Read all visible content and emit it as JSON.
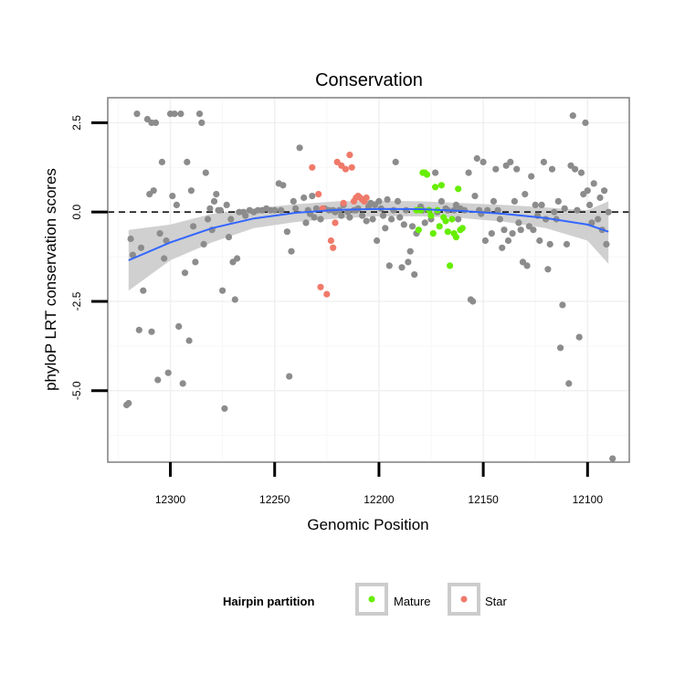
{
  "chart_data": {
    "type": "scatter",
    "title": "Conservation",
    "xlabel": "Genomic Position",
    "ylabel": "phyloP LRT conservation scores",
    "x_reversed": true,
    "xlim": [
      12330,
      12080
    ],
    "ylim": [
      -7.0,
      3.2
    ],
    "x_ticks": [
      12300,
      12250,
      12200,
      12150,
      12100
    ],
    "x_tick_labels": [
      "12300",
      "12250",
      "12200",
      "12150",
      "12100"
    ],
    "y_ticks": [
      2.5,
      0.0,
      -2.5,
      -5.0
    ],
    "y_tick_labels": [
      "2.5",
      "0.0",
      "-2.5",
      "-5.0"
    ],
    "reference_line": {
      "y": 0.0,
      "style": "dashed"
    },
    "grid": true,
    "legend": {
      "title": "Hairpin partition",
      "position": "bottom",
      "entries": [
        {
          "label": "Mature",
          "color": "#66ee00"
        },
        {
          "label": "Star",
          "color": "#f07a6a"
        }
      ]
    },
    "colors": {
      "other": "#8c8c8c",
      "mature": "#66ee00",
      "star": "#f07a6a",
      "smooth": "#3366ff",
      "band": "#c8c8c8"
    },
    "smooth": {
      "x": [
        12320,
        12300,
        12280,
        12260,
        12240,
        12220,
        12200,
        12180,
        12160,
        12140,
        12120,
        12100,
        12090
      ],
      "y": [
        -1.35,
        -0.85,
        -0.45,
        -0.18,
        -0.02,
        0.06,
        0.09,
        0.08,
        0.03,
        -0.05,
        -0.17,
        -0.35,
        -0.55
      ],
      "band_low": [
        -2.2,
        -1.35,
        -0.85,
        -0.45,
        -0.28,
        -0.18,
        -0.12,
        -0.12,
        -0.17,
        -0.27,
        -0.45,
        -0.8,
        -1.45
      ],
      "band_high": [
        -0.5,
        -0.35,
        -0.05,
        0.1,
        0.22,
        0.3,
        0.32,
        0.3,
        0.25,
        0.2,
        0.13,
        0.05,
        0.3
      ]
    },
    "series": [
      {
        "name": "",
        "group": "other",
        "points": [
          [
            12321,
            -5.4
          ],
          [
            12320,
            -5.35
          ],
          [
            12319,
            -0.75
          ],
          [
            12318,
            -1.2
          ],
          [
            12316,
            2.75
          ],
          [
            12315,
            -3.3
          ],
          [
            12314,
            -1.0
          ],
          [
            12313,
            -2.2
          ],
          [
            12311,
            2.6
          ],
          [
            12310,
            0.5
          ],
          [
            12309,
            -3.35
          ],
          [
            12309,
            2.5
          ],
          [
            12308,
            0.6
          ],
          [
            12307,
            2.5
          ],
          [
            12306,
            -4.7
          ],
          [
            12305,
            -0.6
          ],
          [
            12304,
            1.4
          ],
          [
            12303,
            -1.3
          ],
          [
            12302,
            -0.8
          ],
          [
            12301,
            -4.5
          ],
          [
            12300,
            2.75
          ],
          [
            12299,
            0.45
          ],
          [
            12298,
            2.75
          ],
          [
            12297,
            0.2
          ],
          [
            12296,
            -3.2
          ],
          [
            12295,
            2.75
          ],
          [
            12294,
            -4.8
          ],
          [
            12293,
            -1.7
          ],
          [
            12292,
            1.4
          ],
          [
            12291,
            -3.6
          ],
          [
            12290,
            0.6
          ],
          [
            12289,
            -0.4
          ],
          [
            12288,
            -1.4
          ],
          [
            12286,
            2.75
          ],
          [
            12285,
            2.5
          ],
          [
            12284,
            -0.9
          ],
          [
            12283,
            1.1
          ],
          [
            12282,
            -0.2
          ],
          [
            12281,
            0.1
          ],
          [
            12280,
            -0.5
          ],
          [
            12279,
            0.3
          ],
          [
            12278,
            0.5
          ],
          [
            12277,
            0.05
          ],
          [
            12276,
            0.05
          ],
          [
            12275,
            -2.2
          ],
          [
            12274,
            -5.5
          ],
          [
            12273,
            0.2
          ],
          [
            12272,
            -0.7
          ],
          [
            12271,
            -0.2
          ],
          [
            12270,
            -1.4
          ],
          [
            12269,
            -2.45
          ],
          [
            12268,
            -1.3
          ],
          [
            12267,
            0.0
          ],
          [
            12265,
            0.0
          ],
          [
            12264,
            -0.1
          ],
          [
            12262,
            0.05
          ],
          [
            12260,
            0.0
          ],
          [
            12258,
            0.05
          ],
          [
            12256,
            0.05
          ],
          [
            12254,
            0.1
          ],
          [
            12252,
            0.05
          ],
          [
            12250,
            0.05
          ],
          [
            12248,
            0.8
          ],
          [
            12247,
            0.05
          ],
          [
            12246,
            0.75
          ],
          [
            12244,
            -0.55
          ],
          [
            12243,
            -4.6
          ],
          [
            12242,
            -1.1
          ],
          [
            12241,
            0.3
          ],
          [
            12240,
            0.1
          ],
          [
            12238,
            1.8
          ],
          [
            12236,
            0.4
          ],
          [
            12235,
            -0.3
          ],
          [
            12234,
            0.05
          ],
          [
            12233,
            -0.05
          ],
          [
            12232,
            0.45
          ],
          [
            12231,
            -0.15
          ],
          [
            12230,
            0.1
          ],
          [
            12228,
            -0.2
          ],
          [
            12226,
            0.1
          ],
          [
            12224,
            0.05
          ],
          [
            12222,
            0.05
          ],
          [
            12221,
            0.0
          ],
          [
            12219,
            0.05
          ],
          [
            12218,
            -0.1
          ],
          [
            12217,
            0.2
          ],
          [
            12215,
            0.0
          ],
          [
            12214,
            -0.15
          ],
          [
            12212,
            0.05
          ],
          [
            12211,
            0.05
          ],
          [
            12210,
            0.1
          ],
          [
            12208,
            -0.1
          ],
          [
            12206,
            -0.25
          ],
          [
            12205,
            0.15
          ],
          [
            12204,
            0.25
          ],
          [
            12203,
            -0.2
          ],
          [
            12202,
            0.2
          ],
          [
            12201,
            -0.8
          ],
          [
            12200,
            0.3
          ],
          [
            12199,
            0.1
          ],
          [
            12198,
            -0.1
          ],
          [
            12197,
            -0.45
          ],
          [
            12196,
            0.35
          ],
          [
            12195,
            -1.5
          ],
          [
            12194,
            -0.2
          ],
          [
            12193,
            0.05
          ],
          [
            12192,
            1.4
          ],
          [
            12191,
            0.3
          ],
          [
            12190,
            -0.15
          ],
          [
            12189,
            -1.55
          ],
          [
            12188,
            -0.35
          ],
          [
            12187,
            0.05
          ],
          [
            12186,
            -1.4
          ],
          [
            12185,
            -1.1
          ],
          [
            12184,
            -0.4
          ],
          [
            12183,
            -1.75
          ],
          [
            12182,
            -0.6
          ],
          [
            12180,
            0.15
          ],
          [
            12179,
            0.05
          ],
          [
            12178,
            -0.3
          ],
          [
            12176,
            0.05
          ],
          [
            12175,
            -0.2
          ],
          [
            12173,
            1.1
          ],
          [
            12172,
            0.0
          ],
          [
            12170,
            0.3
          ],
          [
            12168,
            0.1
          ],
          [
            12167,
            0.05
          ],
          [
            12164,
            0.05
          ],
          [
            12163,
            0.2
          ],
          [
            12162,
            -0.2
          ],
          [
            12161,
            0.1
          ],
          [
            12159,
            0.05
          ],
          [
            12157,
            1.1
          ],
          [
            12156,
            -2.45
          ],
          [
            12155,
            -2.5
          ],
          [
            12154,
            0.45
          ],
          [
            12153,
            1.5
          ],
          [
            12152,
            0.05
          ],
          [
            12151,
            -0.05
          ],
          [
            12150,
            1.4
          ],
          [
            12149,
            -0.8
          ],
          [
            12148,
            0.05
          ],
          [
            12146,
            -0.6
          ],
          [
            12145,
            0.3
          ],
          [
            12144,
            1.2
          ],
          [
            12143,
            0.05
          ],
          [
            12142,
            -0.2
          ],
          [
            12141,
            -1.0
          ],
          [
            12140,
            -0.5
          ],
          [
            12139,
            1.3
          ],
          [
            12138,
            -0.8
          ],
          [
            12137,
            1.4
          ],
          [
            12136,
            -0.6
          ],
          [
            12135,
            0.3
          ],
          [
            12134,
            1.2
          ],
          [
            12133,
            -0.3
          ],
          [
            12132,
            -0.5
          ],
          [
            12131,
            -1.4
          ],
          [
            12130,
            0.5
          ],
          [
            12129,
            -1.5
          ],
          [
            12128,
            -0.4
          ],
          [
            12127,
            1.0
          ],
          [
            12126,
            -0.5
          ],
          [
            12125,
            0.2
          ],
          [
            12124,
            -0.1
          ],
          [
            12123,
            -0.8
          ],
          [
            12122,
            0.2
          ],
          [
            12121,
            1.4
          ],
          [
            12120,
            -0.2
          ],
          [
            12119,
            -1.6
          ],
          [
            12118,
            -0.9
          ],
          [
            12117,
            1.2
          ],
          [
            12116,
            0.0
          ],
          [
            12115,
            -0.2
          ],
          [
            12114,
            0.3
          ],
          [
            12113,
            -3.8
          ],
          [
            12112,
            -2.6
          ],
          [
            12111,
            0.1
          ],
          [
            12110,
            -0.9
          ],
          [
            12109,
            -4.8
          ],
          [
            12108,
            1.3
          ],
          [
            12107,
            2.7
          ],
          [
            12106,
            1.2
          ],
          [
            12105,
            0.05
          ],
          [
            12104,
            -3.5
          ],
          [
            12103,
            1.1
          ],
          [
            12102,
            0.5
          ],
          [
            12101,
            2.5
          ],
          [
            12100,
            0.6
          ],
          [
            12099,
            0.2
          ],
          [
            12098,
            -0.3
          ],
          [
            12097,
            0.8
          ],
          [
            12095,
            -0.2
          ],
          [
            12094,
            0.4
          ],
          [
            12093,
            -0.5
          ],
          [
            12092,
            0.6
          ],
          [
            12091,
            -0.9
          ],
          [
            12090,
            0.0
          ],
          [
            12088,
            -6.9
          ]
        ]
      },
      {
        "name": "Mature",
        "group": "mature",
        "points": [
          [
            12182,
            0.05
          ],
          [
            12181,
            -0.5
          ],
          [
            12180,
            0.05
          ],
          [
            12179,
            1.1
          ],
          [
            12178,
            1.1
          ],
          [
            12177,
            1.05
          ],
          [
            12176,
            0.05
          ],
          [
            12175,
            -0.1
          ],
          [
            12174,
            -0.6
          ],
          [
            12173,
            0.7
          ],
          [
            12172,
            0.05
          ],
          [
            12171,
            -0.4
          ],
          [
            12170,
            0.75
          ],
          [
            12169,
            -0.15
          ],
          [
            12168,
            -0.25
          ],
          [
            12167,
            -0.55
          ],
          [
            12166,
            -1.5
          ],
          [
            12165,
            -0.2
          ],
          [
            12164,
            -0.6
          ],
          [
            12163,
            -0.7
          ],
          [
            12162,
            0.65
          ],
          [
            12161,
            -0.5
          ],
          [
            12160,
            -0.45
          ]
        ]
      },
      {
        "name": "Star",
        "group": "star",
        "points": [
          [
            12232,
            1.25
          ],
          [
            12229,
            0.5
          ],
          [
            12228,
            -2.1
          ],
          [
            12227,
            0.1
          ],
          [
            12225,
            -2.3
          ],
          [
            12223,
            -0.8
          ],
          [
            12222,
            -1.0
          ],
          [
            12221,
            -0.3
          ],
          [
            12220,
            1.4
          ],
          [
            12218,
            1.3
          ],
          [
            12217,
            0.25
          ],
          [
            12216,
            1.2
          ],
          [
            12214,
            1.6
          ],
          [
            12213,
            1.25
          ],
          [
            12212,
            0.3
          ],
          [
            12211,
            0.4
          ],
          [
            12210,
            0.45
          ],
          [
            12209,
            0.4
          ],
          [
            12208,
            0.35
          ],
          [
            12207,
            0.3
          ],
          [
            12206,
            0.4
          ]
        ]
      }
    ]
  }
}
